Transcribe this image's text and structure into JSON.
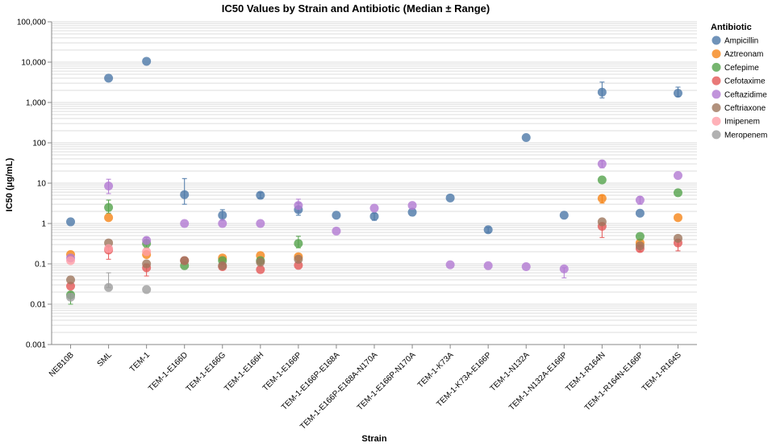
{
  "chart_data": {
    "type": "scatter",
    "title": "IC50 Values by Strain and Antibiotic (Median ± Range)",
    "xlabel": "Strain",
    "ylabel": "IC50 (μg/mL)",
    "yscale": "log",
    "ylim": [
      0.001,
      100000
    ],
    "yticks": [
      {
        "value": 0.001,
        "label": "0.001"
      },
      {
        "value": 0.01,
        "label": "0.01"
      },
      {
        "value": 0.1,
        "label": "0.1"
      },
      {
        "value": 1,
        "label": "1"
      },
      {
        "value": 10,
        "label": "10"
      },
      {
        "value": 100,
        "label": "100"
      },
      {
        "value": 1000,
        "label": "1,000"
      },
      {
        "value": 10000,
        "label": "10,000"
      },
      {
        "value": 100000,
        "label": "100,000"
      }
    ],
    "grid": true,
    "legend": {
      "title": "Antibiotic",
      "placement": "right"
    },
    "categories": [
      "NEB10B",
      "SML",
      "TEM-1",
      "TEM-1-E166D",
      "TEM-1-E166G",
      "TEM-1-E166H",
      "TEM-1-E166P",
      "TEM-1-E166P-E168A",
      "TEM-1-E166P-E168A-N170A",
      "TEM-1-E166P-N170A",
      "TEM-1-K73A",
      "TEM-1-K73A-E166P",
      "TEM-1-N132A",
      "TEM-1-N132A-E166P",
      "TEM-1-R164N",
      "TEM-1-R164N-E166P",
      "TEM-1-R164S"
    ],
    "series": [
      {
        "name": "Ampicillin",
        "color": "#4c78a8",
        "points": [
          {
            "strain": "NEB10B",
            "value": 1.1
          },
          {
            "strain": "SML",
            "value": 4000
          },
          {
            "strain": "TEM-1",
            "value": 10500
          },
          {
            "strain": "TEM-1-E166D",
            "value": 5.2,
            "min": 3,
            "max": 13
          },
          {
            "strain": "TEM-1-E166G",
            "value": 1.6,
            "min": 1.2,
            "max": 2.2
          },
          {
            "strain": "TEM-1-E166H",
            "value": 5.0,
            "min": 4.3,
            "max": 5.8
          },
          {
            "strain": "TEM-1-E166P",
            "value": 2.2,
            "min": 1.6,
            "max": 3.2
          },
          {
            "strain": "TEM-1-E166P-E168A",
            "value": 1.6
          },
          {
            "strain": "TEM-1-E166P-E168A-N170A",
            "value": 1.5,
            "min": 1.2,
            "max": 1.8
          },
          {
            "strain": "TEM-1-E166P-N170A",
            "value": 1.9
          },
          {
            "strain": "TEM-1-K73A",
            "value": 4.3
          },
          {
            "strain": "TEM-1-K73A-E166P",
            "value": 0.7,
            "min": 0.6,
            "max": 0.8
          },
          {
            "strain": "TEM-1-N132A",
            "value": 135
          },
          {
            "strain": "TEM-1-N132A-E166P",
            "value": 1.6
          },
          {
            "strain": "TEM-1-R164N",
            "value": 1800,
            "min": 1300,
            "max": 3200
          },
          {
            "strain": "TEM-1-R164N-E166P",
            "value": 1.8
          },
          {
            "strain": "TEM-1-R164S",
            "value": 1700,
            "min": 1400,
            "max": 2400
          }
        ]
      },
      {
        "name": "Aztreonam",
        "color": "#f58518",
        "points": [
          {
            "strain": "NEB10B",
            "value": 0.17
          },
          {
            "strain": "SML",
            "value": 1.4
          },
          {
            "strain": "TEM-1",
            "value": 0.17
          },
          {
            "strain": "TEM-1-E166G",
            "value": 0.14
          },
          {
            "strain": "TEM-1-E166H",
            "value": 0.16
          },
          {
            "strain": "TEM-1-E166P",
            "value": 0.15
          },
          {
            "strain": "TEM-1-R164N",
            "value": 4.2,
            "min": 3.2,
            "max": 5.0
          },
          {
            "strain": "TEM-1-R164N-E166P",
            "value": 0.33
          },
          {
            "strain": "TEM-1-R164S",
            "value": 1.4
          }
        ]
      },
      {
        "name": "Cefepime",
        "color": "#54a24b",
        "points": [
          {
            "strain": "NEB10B",
            "value": 0.017,
            "min": 0.01,
            "max": 0.02
          },
          {
            "strain": "SML",
            "value": 2.5,
            "min": 1.8,
            "max": 3.8
          },
          {
            "strain": "TEM-1",
            "value": 0.32,
            "min": 0.25,
            "max": 0.4
          },
          {
            "strain": "TEM-1-E166D",
            "value": 0.09
          },
          {
            "strain": "TEM-1-E166G",
            "value": 0.12
          },
          {
            "strain": "TEM-1-E166H",
            "value": 0.12
          },
          {
            "strain": "TEM-1-E166P",
            "value": 0.32,
            "min": 0.25,
            "max": 0.48
          },
          {
            "strain": "TEM-1-R164N",
            "value": 12
          },
          {
            "strain": "TEM-1-R164N-E166P",
            "value": 0.48
          },
          {
            "strain": "TEM-1-R164S",
            "value": 5.8
          }
        ]
      },
      {
        "name": "Cefotaxime",
        "color": "#e45756",
        "points": [
          {
            "strain": "NEB10B",
            "value": 0.028
          },
          {
            "strain": "SML",
            "value": 0.22,
            "min": 0.13,
            "max": 0.28
          },
          {
            "strain": "TEM-1",
            "value": 0.08,
            "min": 0.05,
            "max": 0.1
          },
          {
            "strain": "TEM-1-E166D",
            "value": 0.12
          },
          {
            "strain": "TEM-1-E166G",
            "value": 0.085
          },
          {
            "strain": "TEM-1-E166H",
            "value": 0.072
          },
          {
            "strain": "TEM-1-E166P",
            "value": 0.092
          },
          {
            "strain": "TEM-1-R164N",
            "value": 0.85,
            "min": 0.45,
            "max": 1.0
          },
          {
            "strain": "TEM-1-R164N-E166P",
            "value": 0.24,
            "min": 0.2,
            "max": 0.28
          },
          {
            "strain": "TEM-1-R164S",
            "value": 0.33,
            "min": 0.21,
            "max": 0.4
          }
        ]
      },
      {
        "name": "Ceftazidime",
        "color": "#b279d2",
        "points": [
          {
            "strain": "NEB10B",
            "value": 0.14
          },
          {
            "strain": "SML",
            "value": 8.5,
            "min": 5.5,
            "max": 12.5
          },
          {
            "strain": "TEM-1",
            "value": 0.38,
            "min": 0.3,
            "max": 0.45
          },
          {
            "strain": "TEM-1-E166D",
            "value": 1.0
          },
          {
            "strain": "TEM-1-E166G",
            "value": 1.0
          },
          {
            "strain": "TEM-1-E166H",
            "value": 1.0
          },
          {
            "strain": "TEM-1-E166P",
            "value": 2.8,
            "min": 2.0,
            "max": 4.0
          },
          {
            "strain": "TEM-1-E166P-E168A",
            "value": 0.65
          },
          {
            "strain": "TEM-1-E166P-E168A-N170A",
            "value": 2.4
          },
          {
            "strain": "TEM-1-E166P-N170A",
            "value": 2.8
          },
          {
            "strain": "TEM-1-K73A",
            "value": 0.095
          },
          {
            "strain": "TEM-1-K73A-E166P",
            "value": 0.09
          },
          {
            "strain": "TEM-1-N132A",
            "value": 0.085
          },
          {
            "strain": "TEM-1-N132A-E166P",
            "value": 0.075,
            "min": 0.045,
            "max": 0.08
          },
          {
            "strain": "TEM-1-R164N",
            "value": 30,
            "min": 24,
            "max": 36
          },
          {
            "strain": "TEM-1-R164N-E166P",
            "value": 3.8,
            "min": 3.0,
            "max": 4.6
          },
          {
            "strain": "TEM-1-R164S",
            "value": 15.5
          }
        ]
      },
      {
        "name": "Ceftriaxone",
        "color": "#9d755d",
        "points": [
          {
            "strain": "NEB10B",
            "value": 0.04
          },
          {
            "strain": "SML",
            "value": 0.33
          },
          {
            "strain": "TEM-1",
            "value": 0.1
          },
          {
            "strain": "TEM-1-E166D",
            "value": 0.12
          },
          {
            "strain": "TEM-1-E166G",
            "value": 0.09
          },
          {
            "strain": "TEM-1-E166H",
            "value": 0.11
          },
          {
            "strain": "TEM-1-E166P",
            "value": 0.13
          },
          {
            "strain": "TEM-1-R164N",
            "value": 1.1
          },
          {
            "strain": "TEM-1-R164N-E166P",
            "value": 0.28
          },
          {
            "strain": "TEM-1-R164S",
            "value": 0.43
          }
        ]
      },
      {
        "name": "Imipenem",
        "color": "#ff9da6",
        "points": [
          {
            "strain": "NEB10B",
            "value": 0.12
          },
          {
            "strain": "SML",
            "value": 0.24
          },
          {
            "strain": "TEM-1",
            "value": 0.2
          }
        ]
      },
      {
        "name": "Meropenem",
        "color": "#9d9d9d",
        "points": [
          {
            "strain": "NEB10B",
            "value": 0.015
          },
          {
            "strain": "SML",
            "value": 0.026,
            "min": 0.026,
            "max": 0.06
          },
          {
            "strain": "TEM-1",
            "value": 0.023
          }
        ]
      }
    ]
  }
}
